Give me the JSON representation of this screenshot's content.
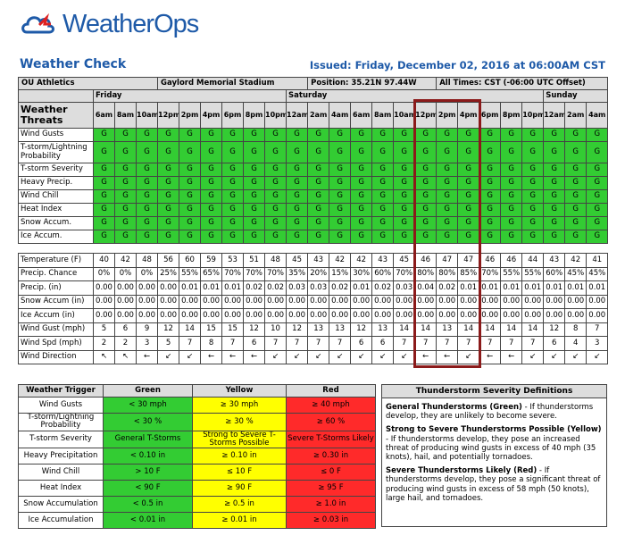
{
  "header": {
    "logo": "WeatherOps",
    "title": "Weather Check",
    "issued": "Issued: Friday, December 02, 2016 at 06:00AM CST"
  },
  "info": [
    "OU Athletics",
    "Gaylord Memorial Stadium",
    "Position: 35.21N 97.44W",
    "All Times: CST (-06:00 UTC Offset)"
  ],
  "forecast": {
    "threats_label": "Weather Threats",
    "days": [
      {
        "name": "Friday",
        "times": [
          "6am",
          "8am",
          "10am",
          "12pm",
          "2pm",
          "4pm",
          "6pm",
          "8pm",
          "10pm"
        ]
      },
      {
        "name": "Saturday",
        "times": [
          "12am",
          "2am",
          "4am",
          "6am",
          "8am",
          "10am",
          "12pm",
          "2pm",
          "4pm",
          "6pm",
          "8pm",
          "10pm"
        ]
      },
      {
        "name": "Sunday",
        "times": [
          "12am",
          "2am",
          "4am"
        ]
      }
    ],
    "threat_rows": [
      {
        "label": "Wind Gusts",
        "values": [
          "G",
          "G",
          "G",
          "G",
          "G",
          "G",
          "G",
          "G",
          "G",
          "G",
          "G",
          "G",
          "G",
          "G",
          "G",
          "G",
          "G",
          "G",
          "G",
          "G",
          "G",
          "G",
          "G",
          "G"
        ]
      },
      {
        "label": "T-storm/Lightning Probability",
        "values": [
          "G",
          "G",
          "G",
          "G",
          "G",
          "G",
          "G",
          "G",
          "G",
          "G",
          "G",
          "G",
          "G",
          "G",
          "G",
          "G",
          "G",
          "G",
          "G",
          "G",
          "G",
          "G",
          "G",
          "G"
        ]
      },
      {
        "label": "T-storm Severity",
        "values": [
          "G",
          "G",
          "G",
          "G",
          "G",
          "G",
          "G",
          "G",
          "G",
          "G",
          "G",
          "G",
          "G",
          "G",
          "G",
          "G",
          "G",
          "G",
          "G",
          "G",
          "G",
          "G",
          "G",
          "G"
        ]
      },
      {
        "label": "Heavy Precip.",
        "values": [
          "G",
          "G",
          "G",
          "G",
          "G",
          "G",
          "G",
          "G",
          "G",
          "G",
          "G",
          "G",
          "G",
          "G",
          "G",
          "G",
          "G",
          "G",
          "G",
          "G",
          "G",
          "G",
          "G",
          "G"
        ]
      },
      {
        "label": "Wind Chill",
        "values": [
          "G",
          "G",
          "G",
          "G",
          "G",
          "G",
          "G",
          "G",
          "G",
          "G",
          "G",
          "G",
          "G",
          "G",
          "G",
          "G",
          "G",
          "G",
          "G",
          "G",
          "G",
          "G",
          "G",
          "G"
        ]
      },
      {
        "label": "Heat Index",
        "values": [
          "G",
          "G",
          "G",
          "G",
          "G",
          "G",
          "G",
          "G",
          "G",
          "G",
          "G",
          "G",
          "G",
          "G",
          "G",
          "G",
          "G",
          "G",
          "G",
          "G",
          "G",
          "G",
          "G",
          "G"
        ]
      },
      {
        "label": "Snow Accum.",
        "values": [
          "G",
          "G",
          "G",
          "G",
          "G",
          "G",
          "G",
          "G",
          "G",
          "G",
          "G",
          "G",
          "G",
          "G",
          "G",
          "G",
          "G",
          "G",
          "G",
          "G",
          "G",
          "G",
          "G",
          "G"
        ]
      },
      {
        "label": "Ice Accum.",
        "values": [
          "G",
          "G",
          "G",
          "G",
          "G",
          "G",
          "G",
          "G",
          "G",
          "G",
          "G",
          "G",
          "G",
          "G",
          "G",
          "G",
          "G",
          "G",
          "G",
          "G",
          "G",
          "G",
          "G",
          "G"
        ]
      }
    ],
    "data_rows": [
      {
        "label": "Temperature (F)",
        "values": [
          40,
          42,
          48,
          56,
          60,
          59,
          53,
          51,
          48,
          45,
          43,
          42,
          42,
          43,
          45,
          46,
          47,
          47,
          46,
          46,
          44,
          43,
          42,
          41
        ]
      },
      {
        "label": "Precip. Chance",
        "values": [
          "0%",
          "0%",
          "0%",
          "25%",
          "55%",
          "65%",
          "70%",
          "70%",
          "70%",
          "35%",
          "20%",
          "15%",
          "30%",
          "60%",
          "70%",
          "80%",
          "80%",
          "85%",
          "70%",
          "55%",
          "55%",
          "60%",
          "45%",
          "45%"
        ]
      },
      {
        "label": "Precip. (in)",
        "values": [
          "0.00",
          "0.00",
          "0.00",
          "0.00",
          "0.01",
          "0.01",
          "0.01",
          "0.02",
          "0.02",
          "0.03",
          "0.03",
          "0.02",
          "0.01",
          "0.02",
          "0.03",
          "0.04",
          "0.02",
          "0.01",
          "0.01",
          "0.01",
          "0.01",
          "0.01",
          "0.01",
          "0.01"
        ]
      },
      {
        "label": "Snow Accum (in)",
        "values": [
          "0.00",
          "0.00",
          "0.00",
          "0.00",
          "0.00",
          "0.00",
          "0.00",
          "0.00",
          "0.00",
          "0.00",
          "0.00",
          "0.00",
          "0.00",
          "0.00",
          "0.00",
          "0.00",
          "0.00",
          "0.00",
          "0.00",
          "0.00",
          "0.00",
          "0.00",
          "0.00",
          "0.00"
        ]
      },
      {
        "label": "Ice Accum (in)",
        "values": [
          "0.00",
          "0.00",
          "0.00",
          "0.00",
          "0.00",
          "0.00",
          "0.00",
          "0.00",
          "0.00",
          "0.00",
          "0.00",
          "0.00",
          "0.00",
          "0.00",
          "0.00",
          "0.00",
          "0.00",
          "0.00",
          "0.00",
          "0.00",
          "0.00",
          "0.00",
          "0.00",
          "0.00"
        ]
      },
      {
        "label": "Wind Gust (mph)",
        "values": [
          5,
          6,
          9,
          12,
          14,
          15,
          15,
          12,
          10,
          12,
          13,
          13,
          12,
          13,
          14,
          14,
          13,
          14,
          14,
          14,
          14,
          12,
          8,
          7
        ]
      },
      {
        "label": "Wind Spd (mph)",
        "values": [
          2,
          2,
          3,
          5,
          7,
          8,
          7,
          6,
          7,
          7,
          7,
          7,
          6,
          6,
          7,
          7,
          7,
          7,
          7,
          7,
          7,
          6,
          4,
          3
        ]
      },
      {
        "label": "Wind Direction",
        "values": [
          "↖",
          "↖",
          "←",
          "↙",
          "↙",
          "←",
          "←",
          "←",
          "↙",
          "↙",
          "↙",
          "↙",
          "↙",
          "↙",
          "↙",
          "←",
          "←",
          "↙",
          "←",
          "←",
          "↙",
          "↙",
          "↙",
          "↙"
        ]
      }
    ]
  },
  "triggers": {
    "headers": [
      "Weather Trigger",
      "Green",
      "Yellow",
      "Red"
    ],
    "rows": [
      [
        "Wind Gusts",
        "< 30 mph",
        "≥ 30 mph",
        "≥ 40 mph"
      ],
      [
        "T-storm/Lightning Probability",
        "< 30 %",
        "≥ 30 %",
        "≥ 60 %"
      ],
      [
        "T-storm Severity",
        "General T-Storms",
        "Strong to Severe T-Storms Possible",
        "Severe T-Storms Likely"
      ],
      [
        "Heavy Precipitation",
        "< 0.10 in",
        "≥ 0.10 in",
        "≥ 0.30 in"
      ],
      [
        "Wind Chill",
        "> 10 F",
        "≤ 10 F",
        "≤ 0 F"
      ],
      [
        "Heat Index",
        "< 90 F",
        "≥ 90 F",
        "≥ 95 F"
      ],
      [
        "Snow Accumulation",
        "< 0.5 in",
        "≥ 0.5 in",
        "≥ 1.0 in"
      ],
      [
        "Ice Accumulation",
        "< 0.01 in",
        "≥ 0.01 in",
        "≥ 0.03 in"
      ]
    ]
  },
  "definitions": {
    "title": "Thunderstorm Severity Definitions",
    "items": [
      {
        "heading": "General Thunderstorms (Green)",
        "text": " - If thunderstorms develop, they are unlikely to become severe."
      },
      {
        "heading": "Strong to Severe Thunderstorms Possible (Yellow)",
        "text": " - If thunderstorms develop, they pose an increased threat of producing wind gusts in excess of 40 mph (35 knots), hail, and potentially tornadoes."
      },
      {
        "heading": "Severe Thunderstorms Likely (Red)",
        "text": " - If thunderstorms develop, they pose a significant threat of producing wind gusts in excess of 58 mph (50 knots), large hail, and tornadoes."
      }
    ]
  }
}
